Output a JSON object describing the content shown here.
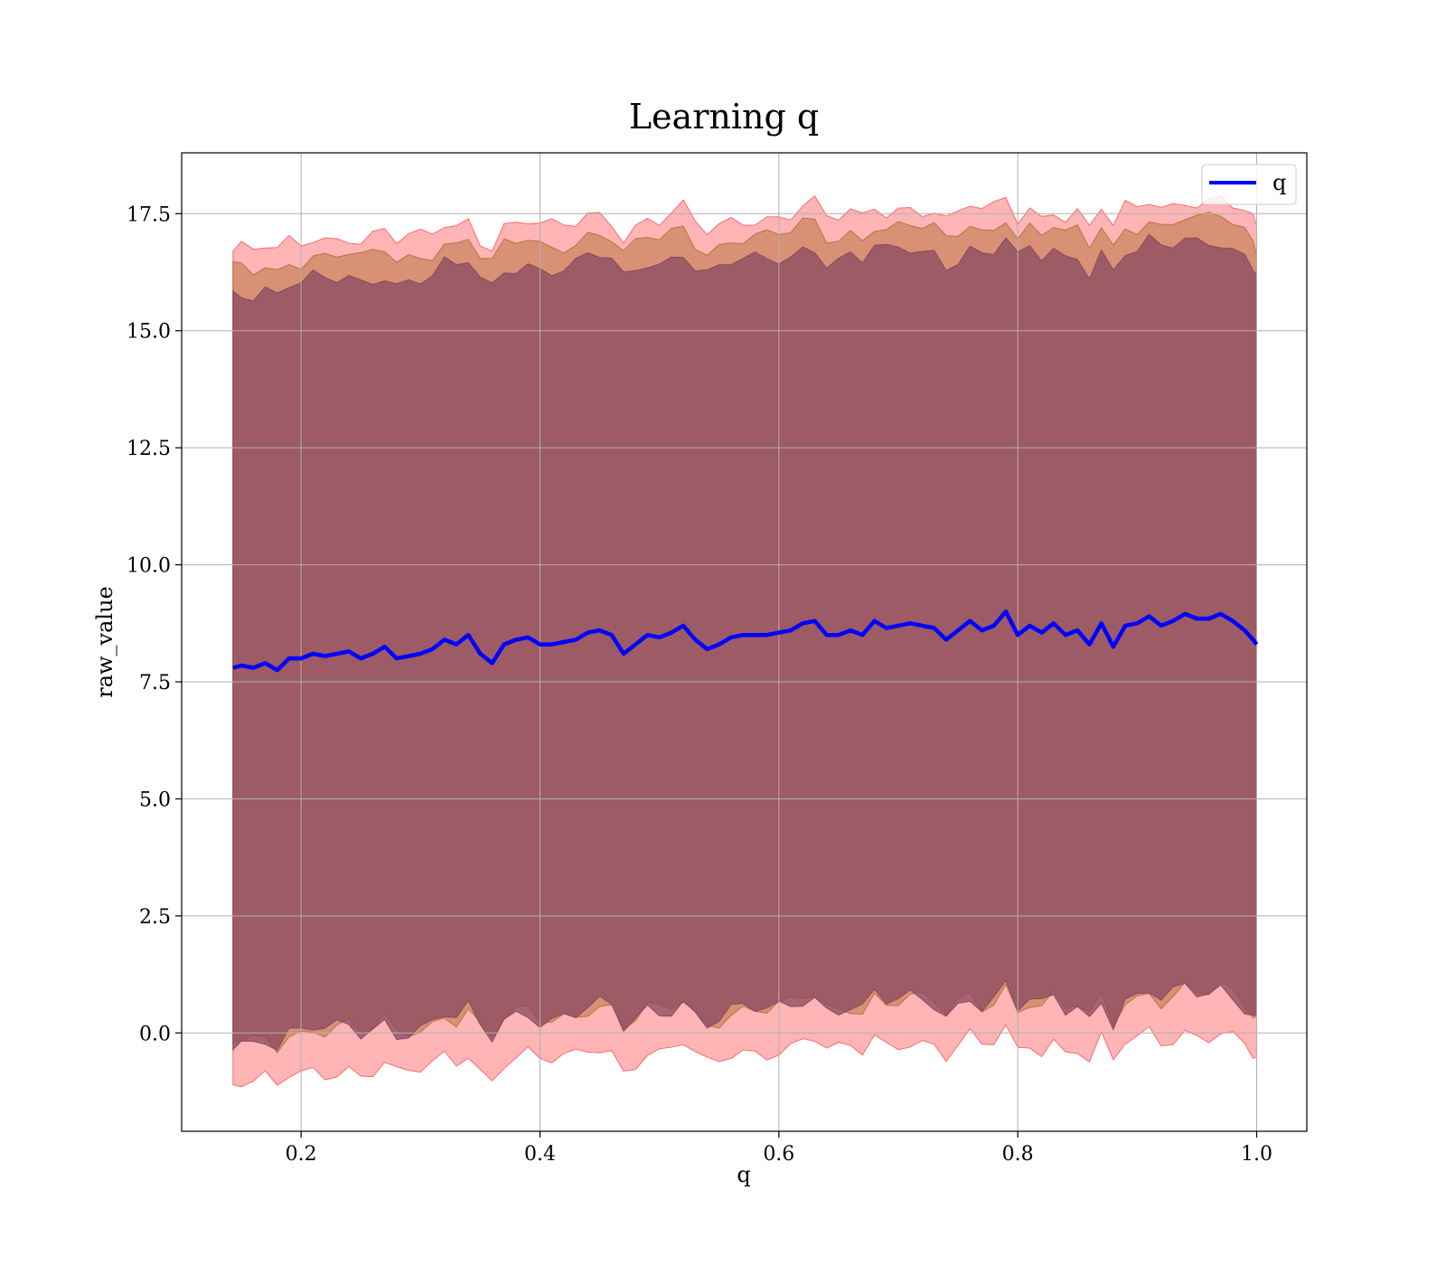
{
  "chart_data": {
    "type": "line",
    "title": "Learning q",
    "xlabel": "q",
    "ylabel": "raw_value",
    "xlim": [
      0.1,
      1.042
    ],
    "ylim": [
      -2.1,
      18.8
    ],
    "xticks": [
      0.2,
      0.4,
      0.6,
      0.8,
      1.0
    ],
    "xtick_labels": [
      "0.2",
      "0.4",
      "0.6",
      "0.8",
      "1.0"
    ],
    "yticks": [
      0.0,
      2.5,
      5.0,
      7.5,
      10.0,
      12.5,
      15.0,
      17.5
    ],
    "ytick_labels": [
      "0.0",
      "2.5",
      "5.0",
      "7.5",
      "10.0",
      "12.5",
      "15.0",
      "17.5"
    ],
    "grid": true,
    "legend": {
      "position": "top-right",
      "entries": [
        "q"
      ]
    },
    "colors": {
      "line": "#0000ff",
      "band_outer": "#ff6b6b",
      "band_mid": "#b8733e",
      "band_inner": "#8a4a60"
    },
    "bands": [
      {
        "name": "outer",
        "offset_upper": 8.9,
        "offset_lower": 8.9
      },
      {
        "name": "middle",
        "offset_upper": 8.5,
        "offset_lower": 8.0
      },
      {
        "name": "inner",
        "offset_upper": 8.0,
        "offset_lower": 8.0
      }
    ],
    "series": [
      {
        "name": "q",
        "x": [
          0.143,
          0.15,
          0.16,
          0.17,
          0.18,
          0.19,
          0.2,
          0.21,
          0.22,
          0.23,
          0.24,
          0.25,
          0.26,
          0.27,
          0.28,
          0.29,
          0.3,
          0.31,
          0.32,
          0.33,
          0.34,
          0.35,
          0.36,
          0.37,
          0.38,
          0.39,
          0.4,
          0.41,
          0.42,
          0.43,
          0.44,
          0.45,
          0.46,
          0.47,
          0.48,
          0.49,
          0.5,
          0.51,
          0.52,
          0.53,
          0.54,
          0.55,
          0.56,
          0.57,
          0.58,
          0.59,
          0.6,
          0.61,
          0.62,
          0.63,
          0.64,
          0.65,
          0.66,
          0.67,
          0.68,
          0.69,
          0.7,
          0.71,
          0.72,
          0.73,
          0.74,
          0.75,
          0.76,
          0.77,
          0.78,
          0.79,
          0.8,
          0.81,
          0.82,
          0.83,
          0.84,
          0.85,
          0.86,
          0.87,
          0.88,
          0.89,
          0.9,
          0.91,
          0.92,
          0.93,
          0.94,
          0.95,
          0.96,
          0.97,
          0.98,
          0.99,
          0.997,
          1.0
        ],
        "values": [
          7.8,
          7.85,
          7.8,
          7.9,
          7.75,
          8.0,
          8.0,
          8.1,
          8.05,
          8.1,
          8.15,
          8.0,
          8.1,
          8.25,
          8.0,
          8.05,
          8.1,
          8.2,
          8.4,
          8.3,
          8.5,
          8.1,
          7.9,
          8.3,
          8.4,
          8.45,
          8.3,
          8.3,
          8.35,
          8.4,
          8.55,
          8.6,
          8.5,
          8.1,
          8.3,
          8.5,
          8.45,
          8.55,
          8.7,
          8.4,
          8.2,
          8.3,
          8.45,
          8.5,
          8.5,
          8.5,
          8.55,
          8.6,
          8.75,
          8.8,
          8.5,
          8.5,
          8.6,
          8.5,
          8.8,
          8.65,
          8.7,
          8.75,
          8.7,
          8.65,
          8.4,
          8.6,
          8.8,
          8.6,
          8.7,
          9.0,
          8.5,
          8.7,
          8.55,
          8.75,
          8.5,
          8.6,
          8.3,
          8.75,
          8.25,
          8.7,
          8.75,
          8.9,
          8.7,
          8.8,
          8.95,
          8.85,
          8.85,
          8.95,
          8.8,
          8.6,
          8.4,
          8.3
        ]
      }
    ]
  }
}
